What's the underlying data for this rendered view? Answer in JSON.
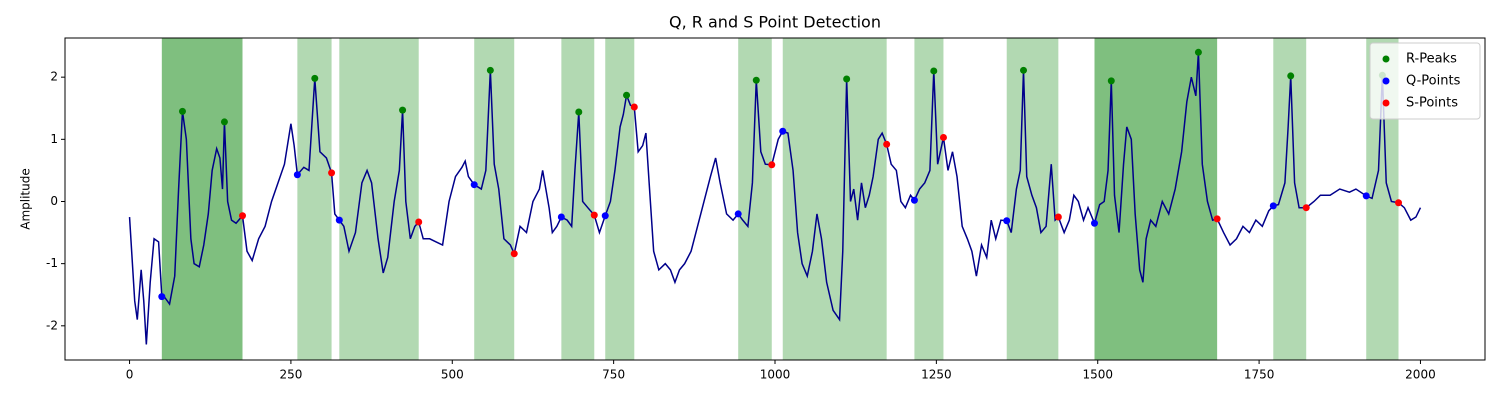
{
  "chart_data": {
    "type": "line",
    "title": "Q, R and S Point Detection",
    "ylabel": "Amplitude",
    "xlim": [
      -100,
      2100
    ],
    "ylim": [
      -2.55,
      2.63
    ],
    "xticks": [
      0,
      250,
      500,
      750,
      1000,
      1250,
      1500,
      1750,
      2000
    ],
    "yticks": [
      -2,
      -1,
      0,
      1,
      2
    ],
    "legend": "upper right",
    "line": {
      "color": "#00008b",
      "x": [
        0,
        8,
        12,
        18,
        22,
        26,
        32,
        38,
        45,
        50,
        55,
        62,
        70,
        76,
        82,
        88,
        95,
        100,
        108,
        115,
        122,
        128,
        135,
        140,
        144,
        147,
        152,
        158,
        165,
        175,
        182,
        190,
        200,
        210,
        220,
        230,
        240,
        250,
        255,
        260,
        270,
        278,
        287,
        295,
        305,
        313,
        318,
        325,
        332,
        340,
        350,
        360,
        368,
        375,
        385,
        393,
        400,
        410,
        418,
        423,
        428,
        435,
        442,
        448,
        455,
        465,
        475,
        485,
        495,
        505,
        515,
        520,
        525,
        534,
        545,
        552,
        559,
        565,
        572,
        580,
        590,
        596,
        605,
        615,
        625,
        635,
        640,
        650,
        655,
        662,
        669,
        678,
        685,
        690,
        696,
        702,
        710,
        720,
        728,
        737,
        745,
        752,
        760,
        765,
        770,
        776,
        782,
        788,
        795,
        800,
        805,
        812,
        820,
        830,
        838,
        845,
        852,
        860,
        870,
        880,
        890,
        900,
        908,
        915,
        925,
        935,
        943,
        950,
        958,
        965,
        971,
        978,
        985,
        995,
        1005,
        1012,
        1020,
        1028,
        1035,
        1042,
        1050,
        1058,
        1065,
        1072,
        1080,
        1090,
        1100,
        1105,
        1111,
        1117,
        1122,
        1128,
        1134,
        1140,
        1146,
        1152,
        1160,
        1166,
        1173,
        1180,
        1188,
        1195,
        1202,
        1210,
        1216,
        1224,
        1232,
        1240,
        1246,
        1252,
        1261,
        1268,
        1275,
        1282,
        1290,
        1298,
        1305,
        1312,
        1320,
        1328,
        1335,
        1342,
        1350,
        1359,
        1366,
        1374,
        1380,
        1385,
        1390,
        1398,
        1405,
        1412,
        1420,
        1428,
        1434,
        1439,
        1448,
        1456,
        1463,
        1470,
        1478,
        1485,
        1495,
        1503,
        1510,
        1516,
        1521,
        1526,
        1533,
        1540,
        1545,
        1552,
        1558,
        1565,
        1570,
        1575,
        1582,
        1590,
        1600,
        1610,
        1620,
        1630,
        1638,
        1645,
        1652,
        1656,
        1662,
        1670,
        1678,
        1685,
        1695,
        1705,
        1715,
        1725,
        1735,
        1745,
        1755,
        1765,
        1772,
        1780,
        1790,
        1795,
        1799,
        1805,
        1812,
        1823,
        1835,
        1845,
        1860,
        1875,
        1890,
        1900,
        1916,
        1925,
        1935,
        1941,
        1947,
        1955,
        1966,
        1975,
        1985,
        1993,
        2000
      ],
      "y": [
        -0.25,
        -1.6,
        -1.9,
        -1.1,
        -1.6,
        -2.3,
        -1.3,
        -0.6,
        -0.65,
        -1.53,
        -1.55,
        -1.65,
        -1.2,
        0.2,
        1.45,
        1.0,
        -0.6,
        -1.0,
        -1.05,
        -0.7,
        -0.2,
        0.5,
        0.85,
        0.7,
        0.2,
        1.28,
        0.0,
        -0.3,
        -0.35,
        -0.23,
        -0.8,
        -0.95,
        -0.6,
        -0.4,
        0.0,
        0.3,
        0.6,
        1.25,
        0.9,
        0.43,
        0.55,
        0.5,
        1.98,
        0.8,
        0.7,
        0.46,
        -0.2,
        -0.3,
        -0.4,
        -0.8,
        -0.5,
        0.3,
        0.5,
        0.3,
        -0.6,
        -1.15,
        -0.9,
        0.0,
        0.5,
        1.47,
        0.0,
        -0.6,
        -0.4,
        -0.33,
        -0.6,
        -0.6,
        -0.65,
        -0.7,
        0.0,
        0.4,
        0.55,
        0.65,
        0.4,
        0.27,
        0.2,
        0.5,
        2.11,
        0.6,
        0.2,
        -0.6,
        -0.7,
        -0.84,
        -0.4,
        -0.5,
        0.0,
        0.2,
        0.5,
        -0.1,
        -0.5,
        -0.4,
        -0.25,
        -0.3,
        -0.4,
        0.5,
        1.44,
        0.0,
        -0.1,
        -0.22,
        -0.5,
        -0.23,
        0.0,
        0.5,
        1.2,
        1.4,
        1.71,
        1.55,
        1.52,
        0.8,
        0.9,
        1.1,
        0.3,
        -0.8,
        -1.1,
        -1.0,
        -1.1,
        -1.3,
        -1.1,
        -1.0,
        -0.8,
        -0.4,
        0.0,
        0.4,
        0.7,
        0.3,
        -0.2,
        -0.3,
        -0.2,
        -0.3,
        -0.4,
        0.3,
        1.95,
        0.8,
        0.6,
        0.59,
        1.0,
        1.13,
        1.1,
        0.5,
        -0.5,
        -1.0,
        -1.2,
        -0.8,
        -0.2,
        -0.6,
        -1.3,
        -1.75,
        -1.9,
        -0.8,
        1.97,
        0.0,
        0.2,
        -0.3,
        0.3,
        -0.1,
        0.1,
        0.4,
        1.0,
        1.1,
        0.92,
        0.6,
        0.5,
        0.0,
        -0.1,
        0.1,
        0.02,
        0.2,
        0.3,
        0.5,
        2.1,
        0.6,
        1.03,
        0.5,
        0.8,
        0.4,
        -0.4,
        -0.6,
        -0.8,
        -1.2,
        -0.7,
        -0.9,
        -0.3,
        -0.6,
        -0.3,
        -0.31,
        -0.5,
        0.2,
        0.5,
        2.11,
        0.4,
        0.1,
        -0.1,
        -0.5,
        -0.4,
        0.6,
        -0.3,
        -0.25,
        -0.5,
        -0.3,
        0.1,
        0.0,
        -0.3,
        -0.1,
        -0.35,
        -0.05,
        0.0,
        0.5,
        1.94,
        0.1,
        -0.5,
        0.6,
        1.2,
        1.0,
        -0.2,
        -1.1,
        -1.3,
        -0.6,
        -0.3,
        -0.4,
        0.0,
        -0.2,
        0.2,
        0.8,
        1.6,
        2.0,
        1.7,
        2.4,
        0.6,
        0.0,
        -0.3,
        -0.28,
        -0.5,
        -0.7,
        -0.6,
        -0.4,
        -0.5,
        -0.3,
        -0.4,
        -0.15,
        -0.07,
        -0.05,
        0.3,
        1.2,
        2.02,
        0.3,
        -0.1,
        -0.1,
        0.0,
        0.1,
        0.1,
        0.2,
        0.15,
        0.2,
        0.09,
        0.05,
        0.5,
        2.03,
        0.3,
        0.0,
        -0.02,
        -0.1,
        -0.3,
        -0.25,
        -0.1
      ]
    },
    "regions": [
      {
        "start": 50,
        "end": 175,
        "color": "#008000",
        "alpha": 0.5
      },
      {
        "start": 260,
        "end": 313,
        "color": "#008000",
        "alpha": 0.3
      },
      {
        "start": 325,
        "end": 448,
        "color": "#008000",
        "alpha": 0.3
      },
      {
        "start": 534,
        "end": 596,
        "color": "#008000",
        "alpha": 0.3
      },
      {
        "start": 669,
        "end": 720,
        "color": "#008000",
        "alpha": 0.3
      },
      {
        "start": 737,
        "end": 782,
        "color": "#008000",
        "alpha": 0.3
      },
      {
        "start": 943,
        "end": 995,
        "color": "#008000",
        "alpha": 0.3
      },
      {
        "start": 1012,
        "end": 1173,
        "color": "#008000",
        "alpha": 0.3
      },
      {
        "start": 1216,
        "end": 1261,
        "color": "#008000",
        "alpha": 0.3
      },
      {
        "start": 1359,
        "end": 1439,
        "color": "#008000",
        "alpha": 0.3
      },
      {
        "start": 1495,
        "end": 1685,
        "color": "#008000",
        "alpha": 0.5
      },
      {
        "start": 1772,
        "end": 1823,
        "color": "#008000",
        "alpha": 0.3
      },
      {
        "start": 1916,
        "end": 1966,
        "color": "#008000",
        "alpha": 0.3
      }
    ],
    "series": [
      {
        "name": "R-Peaks",
        "color": "#008000",
        "x": [
          82,
          147,
          287,
          423,
          559,
          696,
          770,
          971,
          1111,
          1246,
          1385,
          1521,
          1656,
          1799,
          1941
        ],
        "values": [
          1.45,
          1.28,
          1.98,
          1.47,
          2.11,
          1.44,
          1.71,
          1.95,
          1.97,
          2.1,
          2.11,
          1.94,
          2.4,
          2.02,
          2.03
        ]
      },
      {
        "name": "Q-Points",
        "color": "#0000ff",
        "x": [
          50,
          260,
          325,
          534,
          669,
          737,
          943,
          1012,
          1216,
          1359,
          1495,
          1772,
          1916
        ],
        "values": [
          -1.53,
          0.43,
          -0.3,
          0.27,
          -0.25,
          -0.23,
          -0.2,
          1.13,
          0.02,
          -0.31,
          -0.35,
          -0.07,
          0.09
        ]
      },
      {
        "name": "S-Points",
        "color": "#ff0000",
        "x": [
          175,
          313,
          448,
          596,
          720,
          782,
          995,
          1173,
          1261,
          1439,
          1685,
          1823,
          1966
        ],
        "values": [
          -0.23,
          0.46,
          -0.33,
          -0.84,
          -0.22,
          1.52,
          0.59,
          0.92,
          1.03,
          -0.25,
          -0.28,
          -0.1,
          -0.02
        ]
      }
    ]
  }
}
